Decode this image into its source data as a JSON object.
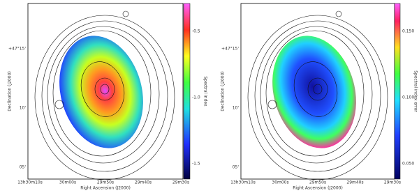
{
  "panels": [
    {
      "y_label": "Declination (J2000)",
      "x_label": "Right Ascension (J2000)",
      "y_ticks": [
        "+47°15'",
        "10'",
        "05'"
      ],
      "x_ticks": [
        "13h30m10s",
        "30m00s",
        "29m50s",
        "29m40s",
        "29m30s"
      ],
      "colorbar_label": "Spectral index",
      "colorbar_ticks": [
        "-0.5",
        "-1.0",
        "-1.5"
      ]
    },
    {
      "y_label": "Declination (J2000)",
      "x_label": "Right Ascension (J2000)",
      "y_ticks": [
        "+47°15'",
        "10'",
        "05'"
      ],
      "x_ticks": [
        "13h30m10s",
        "30m00s",
        "29m50s",
        "29m40s",
        "29m30s"
      ],
      "colorbar_label": "Spectral index error",
      "colorbar_ticks": [
        "0.150",
        "0.100",
        "0.050"
      ]
    }
  ]
}
